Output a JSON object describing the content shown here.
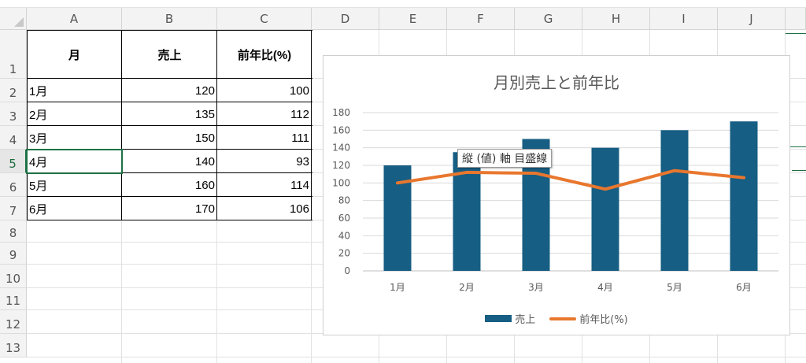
{
  "columns": [
    "A",
    "B",
    "C",
    "D",
    "E",
    "F",
    "G",
    "H",
    "I",
    "J"
  ],
  "rows": [
    "1",
    "2",
    "3",
    "4",
    "5",
    "6",
    "7",
    "8",
    "9",
    "10",
    "11",
    "12",
    "13"
  ],
  "active_row": "5",
  "table": {
    "headers": [
      "月",
      "売上",
      "前年比(%)"
    ],
    "rows": [
      [
        "1月",
        "120",
        "100"
      ],
      [
        "2月",
        "135",
        "112"
      ],
      [
        "3月",
        "150",
        "111"
      ],
      [
        "4月",
        "140",
        "93"
      ],
      [
        "5月",
        "160",
        "114"
      ],
      [
        "6月",
        "170",
        "106"
      ]
    ]
  },
  "chart_data": {
    "type": "bar",
    "title": "月別売上と前年比",
    "categories": [
      "1月",
      "2月",
      "3月",
      "4月",
      "5月",
      "6月"
    ],
    "series": [
      {
        "name": "売上",
        "type": "bar",
        "values": [
          120,
          135,
          150,
          140,
          160,
          170
        ],
        "color": "#165e83"
      },
      {
        "name": "前年比(%)",
        "type": "line",
        "values": [
          100,
          112,
          111,
          93,
          114,
          106
        ],
        "color": "#e8772e"
      }
    ],
    "yticks": [
      "0",
      "20",
      "40",
      "60",
      "80",
      "100",
      "120",
      "140",
      "160",
      "180"
    ],
    "ylim": [
      0,
      180
    ],
    "grid": true,
    "legend": "bottom",
    "tooltip": "縦 (値) 軸 目盛線"
  }
}
